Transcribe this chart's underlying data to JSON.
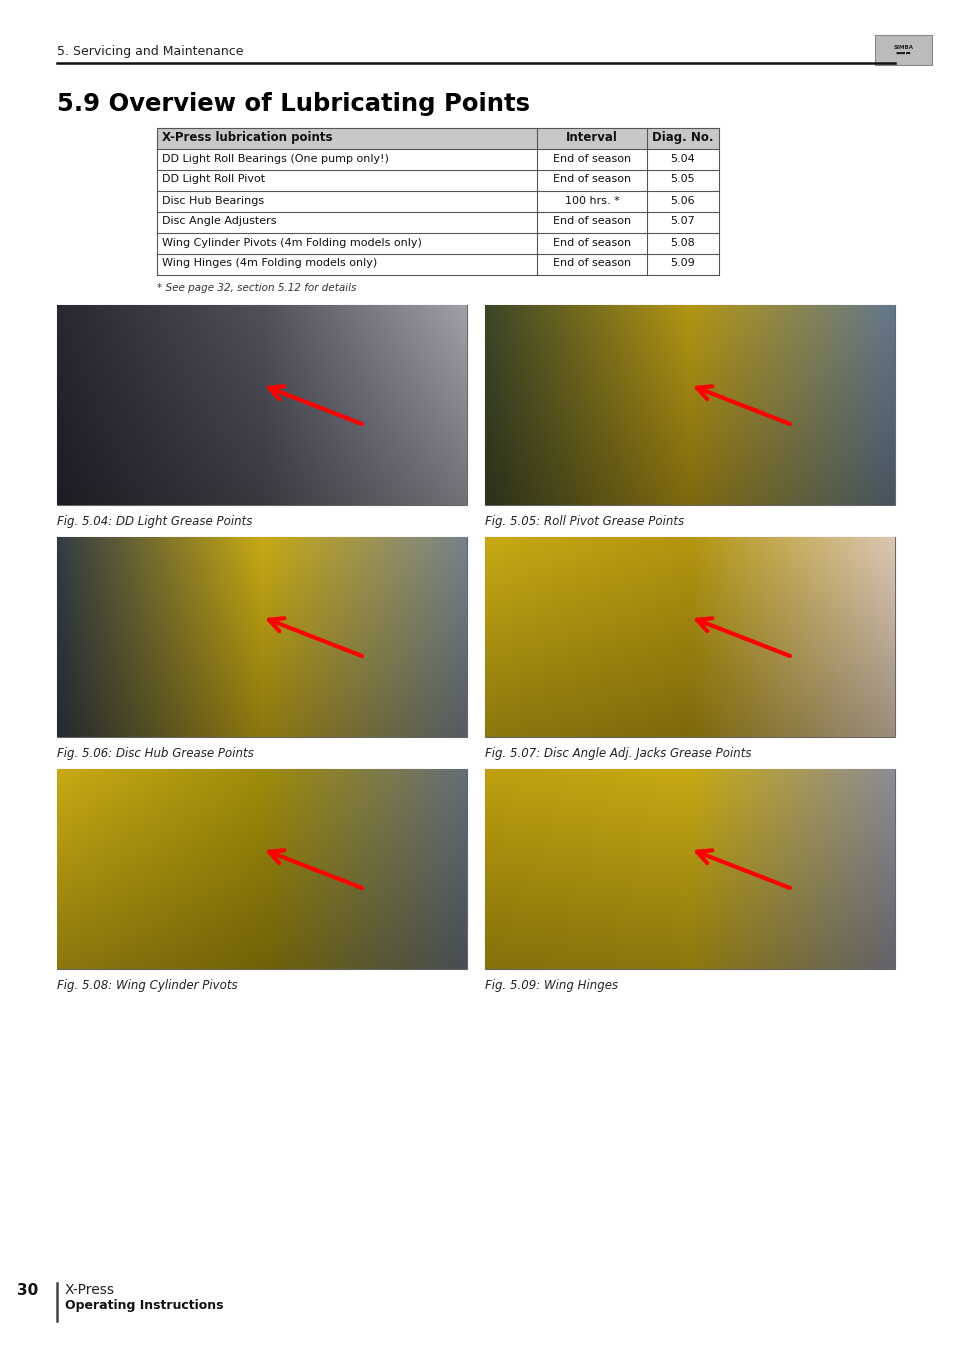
{
  "page_header": "5. Servicing and Maintenance",
  "section_title": "5.9 Overview of Lubricating Points",
  "table_header": [
    "X-Press lubrication points",
    "Interval",
    "Diag. No."
  ],
  "table_rows": [
    [
      "DD Light Roll Bearings (One pump only!)",
      "End of season",
      "5.04"
    ],
    [
      "DD Light Roll Pivot",
      "End of season",
      "5.05"
    ],
    [
      "Disc Hub Bearings",
      "100 hrs. *",
      "5.06"
    ],
    [
      "Disc Angle Adjusters",
      "End of season",
      "5.07"
    ],
    [
      "Wing Cylinder Pivots (4m Folding models only)",
      "End of season",
      "5.08"
    ],
    [
      "Wing Hinges (4m Folding models only)",
      "End of season",
      "5.09"
    ]
  ],
  "footnote": "* See page 32, section 5.12 for details",
  "fig_captions": [
    "Fig. 5.04: DD Light Grease Points",
    "Fig. 5.05: Roll Pivot Grease Points",
    "Fig. 5.06: Disc Hub Grease Points",
    "Fig. 5.07: Disc Angle Adj. Jacks Grease Points",
    "Fig. 5.08: Wing Cylinder Pivots",
    "Fig. 5.09: Wing Hinges"
  ],
  "footer_page": "30",
  "footer_product": "X-Press",
  "footer_subtitle": "Operating Instructions",
  "table_header_bg": "#c8c8c8",
  "table_border_color": "#555555",
  "bg_color": "#ffffff",
  "img_colors": [
    [
      [
        40,
        40,
        50
      ],
      [
        80,
        80,
        90
      ],
      [
        160,
        160,
        170
      ]
    ],
    [
      [
        60,
        70,
        40
      ],
      [
        180,
        150,
        20
      ],
      [
        100,
        120,
        140
      ]
    ],
    [
      [
        50,
        60,
        70
      ],
      [
        200,
        170,
        20
      ],
      [
        120,
        130,
        140
      ]
    ],
    [
      [
        200,
        170,
        20
      ],
      [
        180,
        150,
        15
      ],
      [
        220,
        200,
        180
      ]
    ],
    [
      [
        200,
        170,
        20
      ],
      [
        160,
        140,
        10
      ],
      [
        100,
        110,
        120
      ]
    ],
    [
      [
        190,
        160,
        15
      ],
      [
        200,
        170,
        20
      ],
      [
        140,
        140,
        150
      ]
    ]
  ]
}
